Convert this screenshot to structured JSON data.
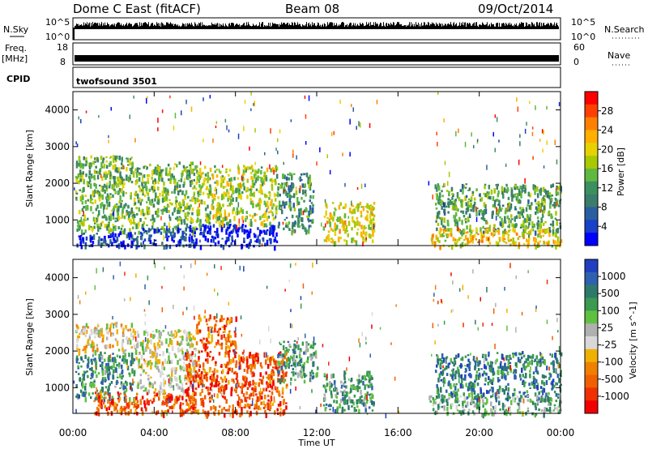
{
  "header": {
    "station": "Dome C East (fitACF)",
    "beam": "Beam 08",
    "date": "09/Oct/2014"
  },
  "strip": {
    "nsky_label": "N.Sky",
    "nsky_top": "10^5",
    "nsky_bot": "10^0",
    "nsearch_label": "N.Search",
    "nsearch_top": "10^5",
    "nsearch_bot": "10^0",
    "freq_label": "Freq.",
    "freq_unit": "[MHz]",
    "freq_top": "18",
    "freq_bot": "8",
    "nave_label": "Nave",
    "nave_top": "60",
    "nave_bot": "0",
    "cpid_label": "CPID",
    "cpid_value": "twofsound 3501"
  },
  "chart_data": [
    {
      "type": "heatmap",
      "name": "power",
      "ylabel": "Slant Range [km]",
      "yticks": [
        1000,
        2000,
        3000,
        4000
      ],
      "ylim": [
        300,
        4500
      ],
      "xlim": [
        0,
        24
      ],
      "colorbar_label": "Power [dB]",
      "colorbar_ticks": [
        "28",
        "24",
        "20",
        "16",
        "12",
        "8",
        "4"
      ],
      "colorbar_colors": [
        "#ff0000",
        "#ff4000",
        "#ff8000",
        "#ffb000",
        "#e6d200",
        "#a8c800",
        "#60b840",
        "#3c9060",
        "#3c7c6a",
        "#2a5ea0",
        "#1840c8",
        "#0000ff"
      ],
      "regions": [
        {
          "t": [
            0.1,
            3.0
          ],
          "r": [
            700,
            2800
          ],
          "level": 0.55
        },
        {
          "t": [
            0.1,
            3.0
          ],
          "r": [
            300,
            700
          ],
          "level": 0.9
        },
        {
          "t": [
            3.0,
            6.0
          ],
          "r": [
            700,
            2600
          ],
          "level": 0.55
        },
        {
          "t": [
            3.0,
            6.0
          ],
          "r": [
            300,
            800
          ],
          "level": 0.8
        },
        {
          "t": [
            5.5,
            10.0
          ],
          "r": [
            300,
            900
          ],
          "level": 0.95
        },
        {
          "t": [
            6.0,
            10.0
          ],
          "r": [
            900,
            2500
          ],
          "level": 0.45
        },
        {
          "t": [
            10.0,
            11.8
          ],
          "r": [
            700,
            2300
          ],
          "level": 0.65
        },
        {
          "t": [
            12.3,
            14.8
          ],
          "r": [
            400,
            1500
          ],
          "level": 0.4
        },
        {
          "t": [
            17.8,
            24.0
          ],
          "r": [
            700,
            2000
          ],
          "level": 0.6
        },
        {
          "t": [
            17.5,
            24.0
          ],
          "r": [
            300,
            800
          ],
          "level": 0.35
        }
      ]
    },
    {
      "type": "heatmap",
      "name": "velocity",
      "ylabel": "Slant Range [km]",
      "yticks": [
        1000,
        2000,
        3000,
        4000
      ],
      "ylim": [
        300,
        4500
      ],
      "xlim": [
        0,
        24
      ],
      "colorbar_label": "Velocity [m s^-1]",
      "colorbar_ticks": [
        "1000",
        "500",
        "100",
        "25",
        "-25",
        "-100",
        "-500",
        "-1000"
      ],
      "colorbar_colors": [
        "#2040c0",
        "#3060b0",
        "#2e7a6a",
        "#3a9a50",
        "#60c040",
        "#b0b0b0",
        "#d8d8d8",
        "#f0b000",
        "#f08000",
        "#f06000",
        "#f03000",
        "#f00000"
      ],
      "regions": [
        {
          "t": [
            0.1,
            3.0
          ],
          "r": [
            700,
            2000
          ],
          "level": 0.25
        },
        {
          "t": [
            0.1,
            3.0
          ],
          "r": [
            2000,
            2800
          ],
          "level": 0.55
        },
        {
          "t": [
            1.0,
            6.0
          ],
          "r": [
            300,
            900
          ],
          "level": 0.8
        },
        {
          "t": [
            3.0,
            6.0
          ],
          "r": [
            900,
            2600
          ],
          "level": 0.5
        },
        {
          "t": [
            5.5,
            10.5
          ],
          "r": [
            300,
            2000
          ],
          "level": 0.82
        },
        {
          "t": [
            6.0,
            8.0
          ],
          "r": [
            2000,
            3000
          ],
          "level": 0.78
        },
        {
          "t": [
            10.0,
            12.0
          ],
          "r": [
            1200,
            2300
          ],
          "level": 0.3
        },
        {
          "t": [
            12.3,
            14.8
          ],
          "r": [
            400,
            1500
          ],
          "level": 0.3
        },
        {
          "t": [
            17.8,
            24.0
          ],
          "r": [
            700,
            2000
          ],
          "level": 0.2
        },
        {
          "t": [
            17.5,
            24.0
          ],
          "r": [
            300,
            800
          ],
          "level": 0.35
        }
      ]
    }
  ],
  "xaxis": {
    "ticks": [
      "00:00",
      "04:00",
      "08:00",
      "12:00",
      "16:00",
      "20:00",
      "00:00"
    ],
    "label": "Time UT"
  }
}
